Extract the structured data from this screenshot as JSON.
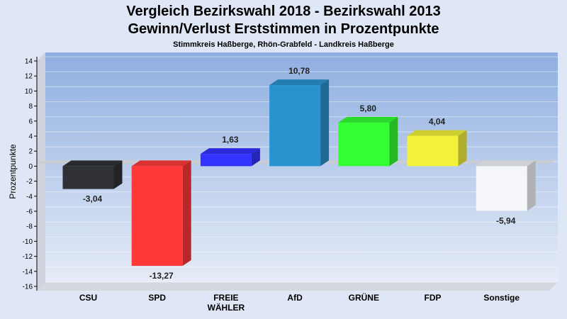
{
  "chart_data": {
    "type": "bar",
    "title": [
      "Vergleich Bezirkswahl 2018 - Bezirkswahl 2013",
      "Gewinn/Verlust Erststimmen in Prozentpunkte"
    ],
    "subtitle": "Stimmkreis Haßberge, Rhön-Grabfeld - Landkreis Haßberge",
    "ylabel": "Prozentpunkte",
    "xlabel": "",
    "ylim": [
      -16,
      14
    ],
    "yticks": [
      14,
      12,
      10,
      8,
      6,
      4,
      2,
      0,
      -2,
      -4,
      -6,
      -8,
      -10,
      -12,
      -14,
      -16
    ],
    "ytick_labels": [
      "14",
      "12",
      "10",
      "8",
      "6",
      "4",
      "2",
      "0",
      "-2",
      "-4",
      "-6",
      "-8",
      "-10",
      "-12",
      "-14",
      "-16"
    ],
    "grid": true,
    "categories": [
      [
        "CSU"
      ],
      [
        "SPD"
      ],
      [
        "FREIE",
        "WÄHLER"
      ],
      [
        "AfD"
      ],
      [
        "GRÜNE"
      ],
      [
        "FDP"
      ],
      [
        "Sonstige"
      ]
    ],
    "values": [
      -3.04,
      -13.27,
      1.63,
      10.78,
      5.8,
      4.04,
      -5.94
    ],
    "value_labels": [
      "-3,04",
      "-13,27",
      "1,63",
      "10,78",
      "5,80",
      "4,04",
      "-5,94"
    ],
    "colors": [
      "#2f3136",
      "#ff3838",
      "#3333ff",
      "#2993cf",
      "#33ff33",
      "#f2f23a",
      "#f5f6fa"
    ]
  }
}
